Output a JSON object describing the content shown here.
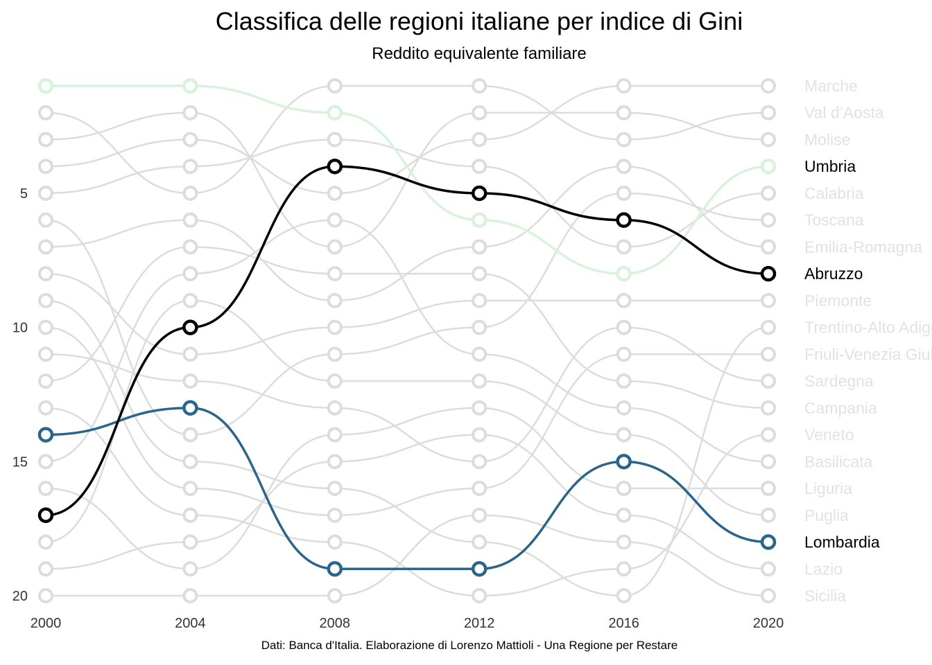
{
  "title": "Classifica delle regioni italiane per indice di Gini",
  "subtitle": "Reddito equivalente familiare",
  "caption": "Dati: Banca d'Italia. Elaborazione di Lorenzo Mattioli - Una Regione per Restare",
  "chart_data": {
    "type": "line",
    "x": [
      2000,
      2004,
      2008,
      2012,
      2016,
      2020
    ],
    "ylim": [
      1,
      20
    ],
    "y_reversed": true,
    "y_ticks": [
      5,
      10,
      15,
      20
    ],
    "grid": false,
    "end_labels": [
      "Marche",
      "Val d’Aosta",
      "Molise",
      "Umbria",
      "Calabria",
      "Toscana",
      "Emilia-Romagna",
      "Abruzzo",
      "Piemonte",
      "Trentino-Alto Adige",
      "Friuli-Venezia Giulia",
      "Sardegna",
      "Campania",
      "Veneto",
      "Basilicata",
      "Liguria",
      "Puglia",
      "Lombardia",
      "Lazio",
      "Sicilia"
    ],
    "series": [
      {
        "name": "Umbria",
        "color": "#d8f2dc",
        "values": [
          1,
          1,
          2,
          6,
          8,
          4
        ]
      },
      {
        "name": "Abruzzo",
        "color": "#000000",
        "values": [
          17,
          10,
          4,
          5,
          6,
          8
        ]
      },
      {
        "name": "Lombardia",
        "color": "#2b658c",
        "values": [
          14,
          13,
          19,
          19,
          15,
          18
        ]
      },
      {
        "name": "Marche",
        "color": "#dcdcdc",
        "values": [
          4,
          3,
          5,
          3,
          1,
          1
        ]
      },
      {
        "name": "Val d’Aosta",
        "color": "#dcdcdc",
        "values": [
          2,
          5,
          1,
          1,
          3,
          2
        ]
      },
      {
        "name": "Molise",
        "color": "#dcdcdc",
        "values": [
          3,
          2,
          7,
          2,
          2,
          3
        ]
      },
      {
        "name": "Calabria",
        "color": "#dcdcdc",
        "values": [
          5,
          4,
          3,
          4,
          7,
          5
        ]
      },
      {
        "name": "Toscana",
        "color": "#dcdcdc",
        "values": [
          6,
          14,
          11,
          10,
          5,
          6
        ]
      },
      {
        "name": "Emilia-Romagna",
        "color": "#dcdcdc",
        "values": [
          7,
          6,
          9,
          7,
          4,
          7
        ]
      },
      {
        "name": "Piemonte",
        "color": "#dcdcdc",
        "values": [
          8,
          11,
          10,
          9,
          9,
          9
        ]
      },
      {
        "name": "Trentino-Alto Adige",
        "color": "#dcdcdc",
        "values": [
          9,
          15,
          16,
          18,
          20,
          10
        ]
      },
      {
        "name": "Friuli-Venezia Giulia",
        "color": "#dcdcdc",
        "values": [
          10,
          16,
          17,
          16,
          11,
          11
        ]
      },
      {
        "name": "Sardegna",
        "color": "#dcdcdc",
        "values": [
          11,
          12,
          13,
          15,
          10,
          12
        ]
      },
      {
        "name": "Campania",
        "color": "#dcdcdc",
        "values": [
          12,
          7,
          8,
          8,
          12,
          13
        ]
      },
      {
        "name": "Veneto",
        "color": "#dcdcdc",
        "values": [
          13,
          17,
          18,
          20,
          19,
          14
        ]
      },
      {
        "name": "Basilicata",
        "color": "#dcdcdc",
        "values": [
          15,
          8,
          6,
          11,
          13,
          15
        ]
      },
      {
        "name": "Liguria",
        "color": "#dcdcdc",
        "values": [
          16,
          19,
          14,
          13,
          16,
          16
        ]
      },
      {
        "name": "Puglia",
        "color": "#dcdcdc",
        "values": [
          18,
          9,
          12,
          12,
          14,
          17
        ]
      },
      {
        "name": "Lazio",
        "color": "#dcdcdc",
        "values": [
          19,
          18,
          15,
          14,
          17,
          19
        ]
      },
      {
        "name": "Sicilia",
        "color": "#dcdcdc",
        "values": [
          20,
          20,
          20,
          17,
          18,
          20
        ]
      }
    ],
    "highlight_label_color": "#000000",
    "muted_label_color": "#e2e2e2",
    "axis_text_color": "#333333"
  }
}
